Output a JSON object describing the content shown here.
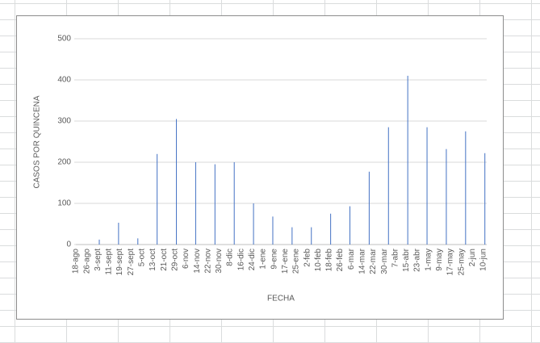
{
  "chart_data": {
    "type": "bar",
    "y_axis_label": "CASOS POR QUINCENA",
    "x_axis_label": "FECHA",
    "x": [
      "4-sept",
      "18-sept",
      "2-oct",
      "16-oct",
      "30-oct",
      "13-nov",
      "27-nov",
      "11-dic",
      "25-dic",
      "8-ene",
      "22-ene",
      "5-feb",
      "19-feb",
      "5-mar",
      "19-mar",
      "2-abr",
      "16-abr",
      "30-abr",
      "14-may",
      "28-may",
      "11-jun"
    ],
    "values": [
      12,
      53,
      15,
      220,
      305,
      200,
      195,
      200,
      100,
      68,
      42,
      42,
      75,
      93,
      177,
      285,
      410,
      285,
      232,
      275,
      222
    ],
    "xticks": [
      "18-ago",
      "26-ago",
      "3-sept",
      "11-sept",
      "19-sept",
      "27-sept",
      "5-oct",
      "13-oct",
      "21-oct",
      "29-oct",
      "6-nov",
      "14-nov",
      "22-nov",
      "30-nov",
      "8-dic",
      "16-dic",
      "24-dic",
      "1-ene",
      "9-ene",
      "17-ene",
      "25-ene",
      "2-feb",
      "10-feb",
      "18-feb",
      "26-feb",
      "6-mar",
      "14-mar",
      "22-mar",
      "30-mar",
      "7-abr",
      "15-abr",
      "23-abr",
      "1-may",
      "9-may",
      "17-may",
      "25-may",
      "2-jun",
      "10-jun"
    ],
    "ylim": [
      0,
      500
    ],
    "yticks": [
      0,
      100,
      200,
      300,
      400,
      500
    ],
    "color": "#4472c4",
    "grid": true
  }
}
